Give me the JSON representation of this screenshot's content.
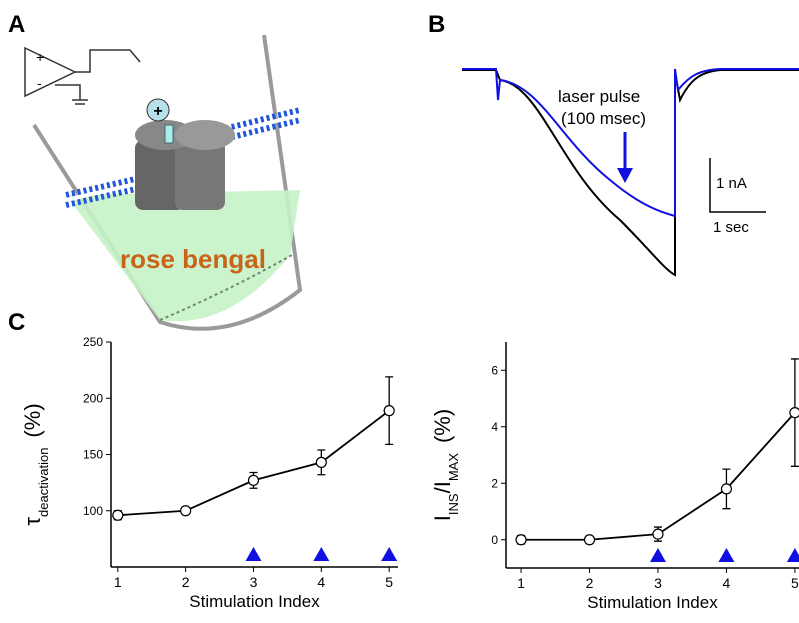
{
  "panels": {
    "a": {
      "label": "A",
      "amp_plus": "+",
      "amp_minus": "-",
      "ion": "+",
      "dye": "rose bengal"
    },
    "b": {
      "label": "B",
      "annotation_line1": "laser pulse",
      "annotation_line2": "(100 msec)",
      "scale_y": "1 nA",
      "scale_x": "1 sec"
    },
    "c": {
      "label": "C"
    }
  },
  "chart_data": [
    {
      "type": "errorbar-line",
      "xlabel": "Stimulation Index",
      "ylabel": {
        "main": "τ",
        "sub": "deactivation",
        "unit": "(%)"
      },
      "x": [
        1,
        2,
        3,
        4,
        5
      ],
      "values": [
        96,
        100,
        127,
        143,
        189
      ],
      "errors": [
        4,
        2,
        7,
        11,
        30
      ],
      "markers_x": [
        3,
        4,
        5
      ],
      "marker_color": "#1010e0",
      "color": "#000000",
      "xlim": [
        0.9,
        5.13
      ],
      "ylim": [
        50,
        250
      ],
      "xticks": [
        1,
        2,
        3,
        4,
        5
      ],
      "yticks": [
        100,
        150,
        200,
        250
      ]
    },
    {
      "type": "errorbar-line",
      "xlabel": "Stimulation Index",
      "ylabel": {
        "main": "I",
        "sub": "INS",
        "main2": "/I",
        "sub2": "MAX",
        "unit": "(%)"
      },
      "x": [
        1,
        2,
        3,
        4,
        5
      ],
      "values": [
        0,
        0,
        0.2,
        1.8,
        4.5
      ],
      "errors": [
        0.15,
        0.1,
        0.25,
        0.7,
        1.9
      ],
      "markers_x": [
        3,
        4,
        5
      ],
      "marker_color": "#1010e0",
      "color": "#000000",
      "xlim": [
        0.78,
        5.06
      ],
      "ylim": [
        -1,
        7
      ],
      "xticks": [
        1,
        2,
        3,
        4,
        5
      ],
      "yticks": [
        0,
        2,
        4,
        6
      ]
    }
  ]
}
